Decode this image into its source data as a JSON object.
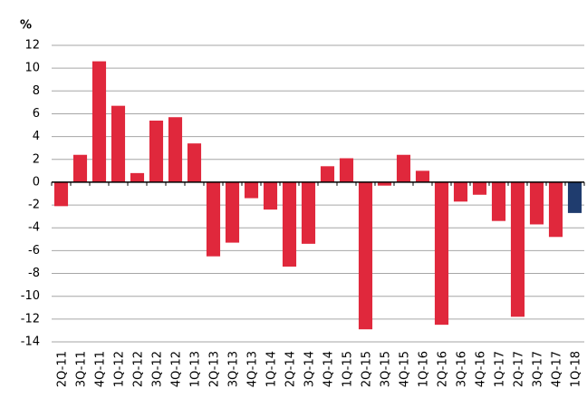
{
  "chart_data": {
    "type": "bar",
    "y_label": "%",
    "categories": [
      "2Q-11",
      "3Q-11",
      "4Q-11",
      "1Q-12",
      "2Q-12",
      "3Q-12",
      "4Q-12",
      "1Q-13",
      "2Q-13",
      "3Q-13",
      "4Q-13",
      "1Q-14",
      "2Q-14",
      "3Q-14",
      "4Q-14",
      "1Q-15",
      "2Q-15",
      "3Q-15",
      "4Q-15",
      "1Q-16",
      "2Q-16",
      "3Q-16",
      "4Q-16",
      "1Q-17",
      "2Q-17",
      "3Q-17",
      "4Q-17",
      "1Q-18"
    ],
    "values": [
      -2.1,
      2.4,
      10.6,
      6.7,
      0.8,
      5.4,
      5.7,
      3.4,
      -6.5,
      -5.3,
      -1.4,
      -2.4,
      -7.4,
      -5.4,
      1.4,
      2.1,
      -12.9,
      -0.3,
      2.4,
      1.0,
      -12.5,
      -1.7,
      -1.1,
      -3.4,
      -11.8,
      -3.7,
      -4.8,
      -2.7
    ],
    "colors": [
      "#e0283c",
      "#e0283c",
      "#e0283c",
      "#e0283c",
      "#e0283c",
      "#e0283c",
      "#e0283c",
      "#e0283c",
      "#e0283c",
      "#e0283c",
      "#e0283c",
      "#e0283c",
      "#e0283c",
      "#e0283c",
      "#e0283c",
      "#e0283c",
      "#e0283c",
      "#e0283c",
      "#e0283c",
      "#e0283c",
      "#e0283c",
      "#e0283c",
      "#e0283c",
      "#e0283c",
      "#e0283c",
      "#e0283c",
      "#e0283c",
      "#1f3c6e"
    ],
    "ylim": [
      -14,
      12
    ],
    "yticks": [
      -14,
      -12,
      -10,
      -8,
      -6,
      -4,
      -2,
      0,
      2,
      4,
      6,
      8,
      10,
      12
    ],
    "grid": true
  }
}
